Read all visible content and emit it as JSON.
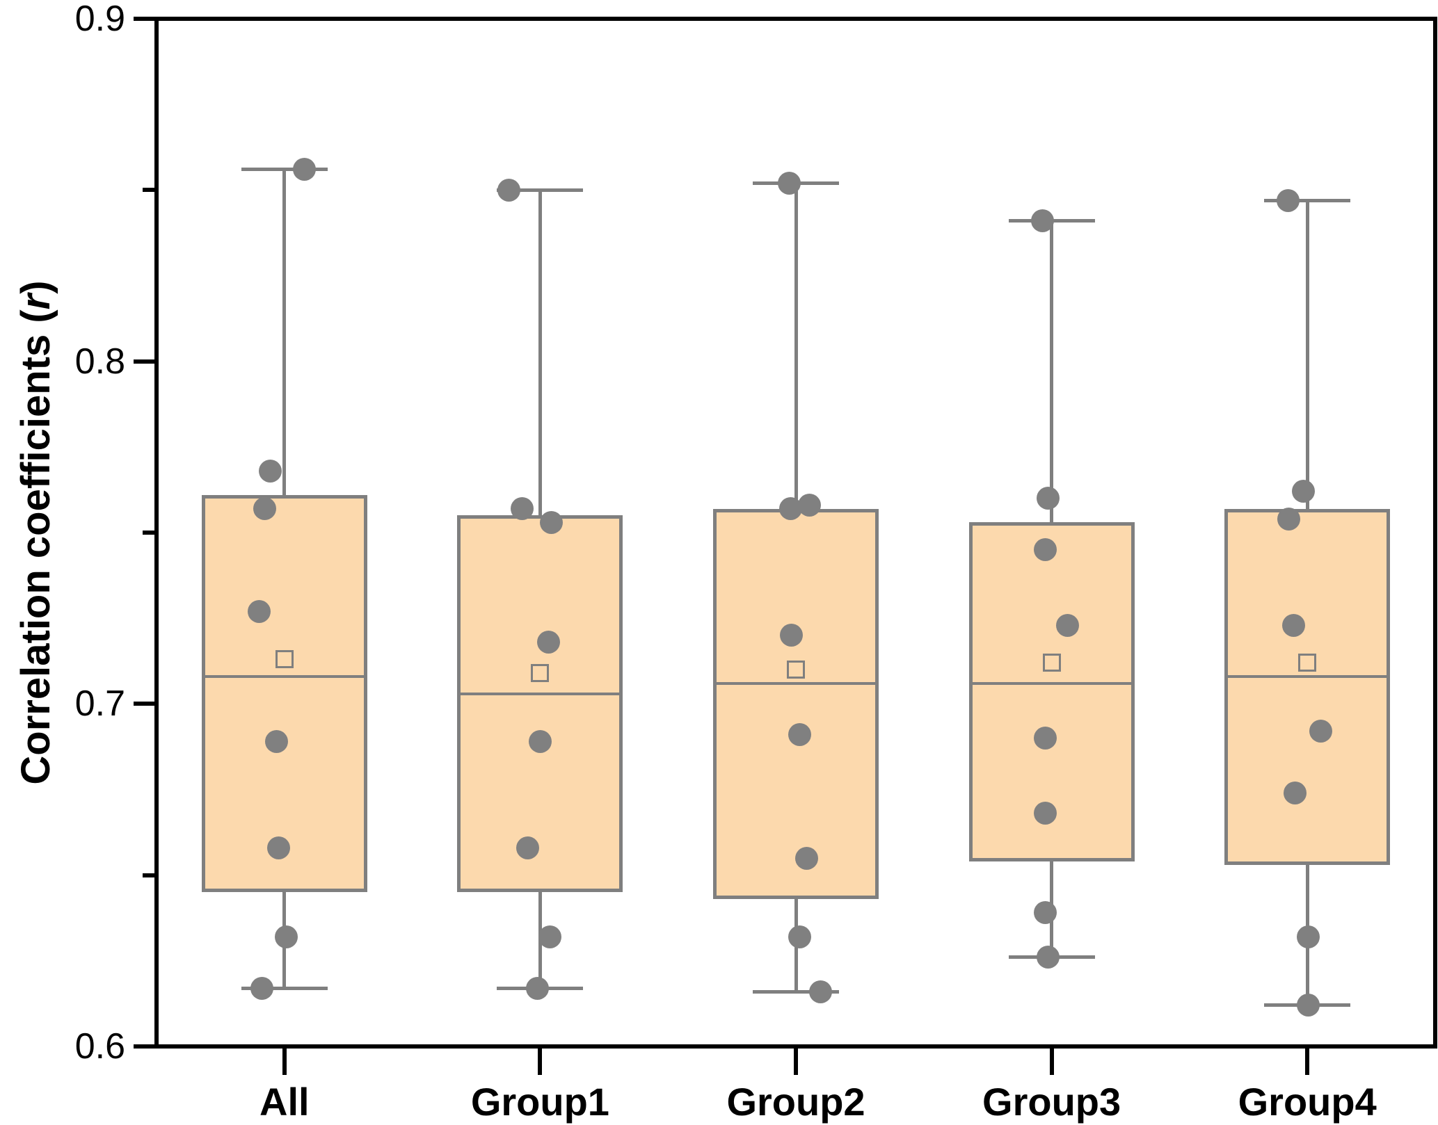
{
  "chart_data": {
    "type": "box",
    "title": "",
    "y_axis": {
      "label_prefix": "Correlation coefficients (",
      "label_italic": "r",
      "label_suffix": ")",
      "min": 0.6,
      "max": 0.9,
      "major_ticks": [
        0.9,
        0.8,
        0.7,
        0.6
      ],
      "major_tick_labels": [
        "0.9",
        "0.8",
        "0.7",
        "0.6"
      ],
      "minor_ticks": [
        0.85,
        0.75,
        0.65
      ]
    },
    "x_axis": {
      "categories": [
        "All",
        "Group1",
        "Group2",
        "Group3",
        "Group4"
      ]
    },
    "legend": "none",
    "grid": "off",
    "series": [
      {
        "category": "All",
        "whisker_low": 0.617,
        "q1": 0.645,
        "median": 0.708,
        "q3": 0.761,
        "whisker_high": 0.856,
        "mean": 0.713,
        "points": [
          {
            "v": 0.856,
            "dx": 29
          },
          {
            "v": 0.768,
            "dx": -20
          },
          {
            "v": 0.757,
            "dx": -28
          },
          {
            "v": 0.727,
            "dx": -36
          },
          {
            "v": 0.689,
            "dx": -11
          },
          {
            "v": 0.658,
            "dx": -8
          },
          {
            "v": 0.632,
            "dx": 3
          },
          {
            "v": 0.617,
            "dx": -32
          }
        ]
      },
      {
        "category": "Group1",
        "whisker_low": 0.617,
        "q1": 0.645,
        "median": 0.703,
        "q3": 0.755,
        "whisker_high": 0.85,
        "mean": 0.709,
        "points": [
          {
            "v": 0.85,
            "dx": -45
          },
          {
            "v": 0.757,
            "dx": -26
          },
          {
            "v": 0.753,
            "dx": 16
          },
          {
            "v": 0.718,
            "dx": 12
          },
          {
            "v": 0.689,
            "dx": 0
          },
          {
            "v": 0.658,
            "dx": -18
          },
          {
            "v": 0.632,
            "dx": 14
          },
          {
            "v": 0.617,
            "dx": -4
          }
        ]
      },
      {
        "category": "Group2",
        "whisker_low": 0.616,
        "q1": 0.643,
        "median": 0.706,
        "q3": 0.757,
        "whisker_high": 0.852,
        "mean": 0.71,
        "points": [
          {
            "v": 0.852,
            "dx": -10
          },
          {
            "v": 0.758,
            "dx": 19
          },
          {
            "v": 0.757,
            "dx": -8
          },
          {
            "v": 0.72,
            "dx": -7
          },
          {
            "v": 0.691,
            "dx": 5
          },
          {
            "v": 0.655,
            "dx": 15
          },
          {
            "v": 0.632,
            "dx": 5
          },
          {
            "v": 0.616,
            "dx": 35
          }
        ]
      },
      {
        "category": "Group3",
        "whisker_low": 0.626,
        "q1": 0.654,
        "median": 0.706,
        "q3": 0.753,
        "whisker_high": 0.841,
        "mean": 0.712,
        "points": [
          {
            "v": 0.841,
            "dx": -13
          },
          {
            "v": 0.76,
            "dx": -5
          },
          {
            "v": 0.745,
            "dx": -9
          },
          {
            "v": 0.723,
            "dx": 23
          },
          {
            "v": 0.69,
            "dx": -9
          },
          {
            "v": 0.668,
            "dx": -9
          },
          {
            "v": 0.639,
            "dx": -9
          },
          {
            "v": 0.626,
            "dx": -5
          }
        ]
      },
      {
        "category": "Group4",
        "whisker_low": 0.612,
        "q1": 0.653,
        "median": 0.708,
        "q3": 0.757,
        "whisker_high": 0.847,
        "mean": 0.712,
        "points": [
          {
            "v": 0.847,
            "dx": -28
          },
          {
            "v": 0.762,
            "dx": -6
          },
          {
            "v": 0.754,
            "dx": -27
          },
          {
            "v": 0.723,
            "dx": -20
          },
          {
            "v": 0.692,
            "dx": 19
          },
          {
            "v": 0.674,
            "dx": -18
          },
          {
            "v": 0.632,
            "dx": 1
          },
          {
            "v": 0.612,
            "dx": 1
          }
        ]
      }
    ],
    "colors": {
      "box_fill": "#fcd9ad",
      "box_border": "#7f7f7f",
      "whisker": "#7f7f7f",
      "median": "#7f7f7f",
      "mean_marker": "#7f7f7f",
      "point": "#808080",
      "axis": "#000000",
      "text": "#000000",
      "background": "#ffffff"
    }
  }
}
